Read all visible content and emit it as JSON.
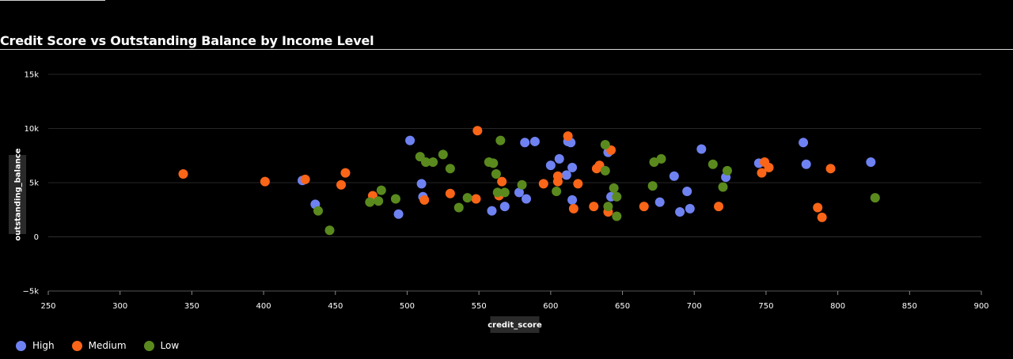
{
  "chart_data": {
    "type": "scatter",
    "title": "Credit Score vs Outstanding Balance by Income Level",
    "xlabel": "credit_score",
    "ylabel": "outstanding_balance",
    "xlim": [
      250,
      900
    ],
    "ylim": [
      -5000,
      15000
    ],
    "x_ticks": [
      250,
      300,
      350,
      400,
      450,
      500,
      550,
      600,
      650,
      700,
      750,
      800,
      850,
      900
    ],
    "y_ticks": [
      -5000,
      0,
      5000,
      10000,
      15000
    ],
    "y_tick_labels": [
      "−5k",
      "0",
      "5k",
      "10k",
      "15k"
    ],
    "grid": true,
    "legend_position": "bottom-left",
    "series": [
      {
        "name": "High",
        "color": "#6f82f2",
        "points": [
          [
            427,
            5200
          ],
          [
            436,
            3000
          ],
          [
            494,
            2100
          ],
          [
            502,
            8900
          ],
          [
            510,
            4900
          ],
          [
            511,
            3700
          ],
          [
            559,
            2400
          ],
          [
            568,
            2800
          ],
          [
            578,
            4100
          ],
          [
            583,
            3500
          ],
          [
            582,
            8700
          ],
          [
            589,
            8800
          ],
          [
            600,
            6600
          ],
          [
            606,
            7200
          ],
          [
            611,
            5700
          ],
          [
            612,
            8800
          ],
          [
            614,
            8700
          ],
          [
            615,
            6400
          ],
          [
            615,
            3400
          ],
          [
            640,
            7800
          ],
          [
            642,
            3700
          ],
          [
            676,
            3200
          ],
          [
            686,
            5600
          ],
          [
            690,
            2300
          ],
          [
            695,
            4200
          ],
          [
            697,
            2600
          ],
          [
            705,
            8100
          ],
          [
            722,
            5500
          ],
          [
            745,
            6800
          ],
          [
            776,
            8700
          ],
          [
            778,
            6700
          ],
          [
            823,
            6900
          ]
        ]
      },
      {
        "name": "Medium",
        "color": "#fa6518",
        "points": [
          [
            344,
            5800
          ],
          [
            401,
            5100
          ],
          [
            429,
            5300
          ],
          [
            454,
            4800
          ],
          [
            457,
            5900
          ],
          [
            476,
            3800
          ],
          [
            512,
            3400
          ],
          [
            530,
            4000
          ],
          [
            548,
            3500
          ],
          [
            549,
            9800
          ],
          [
            564,
            3800
          ],
          [
            566,
            5100
          ],
          [
            595,
            4900
          ],
          [
            605,
            5600
          ],
          [
            605,
            5100
          ],
          [
            612,
            9300
          ],
          [
            616,
            2600
          ],
          [
            619,
            4900
          ],
          [
            630,
            2800
          ],
          [
            632,
            6300
          ],
          [
            634,
            6600
          ],
          [
            640,
            2300
          ],
          [
            642,
            8000
          ],
          [
            665,
            2800
          ],
          [
            717,
            2800
          ],
          [
            747,
            5900
          ],
          [
            749,
            6900
          ],
          [
            752,
            6400
          ],
          [
            786,
            2700
          ],
          [
            789,
            1800
          ],
          [
            795,
            6300
          ]
        ]
      },
      {
        "name": "Low",
        "color": "#5a8a1e",
        "points": [
          [
            438,
            2400
          ],
          [
            446,
            600
          ],
          [
            474,
            3200
          ],
          [
            480,
            3300
          ],
          [
            482,
            4300
          ],
          [
            492,
            3500
          ],
          [
            509,
            7400
          ],
          [
            513,
            6900
          ],
          [
            518,
            6900
          ],
          [
            525,
            7600
          ],
          [
            530,
            6300
          ],
          [
            536,
            2700
          ],
          [
            542,
            3600
          ],
          [
            557,
            6900
          ],
          [
            560,
            6800
          ],
          [
            562,
            5800
          ],
          [
            563,
            4100
          ],
          [
            565,
            8900
          ],
          [
            568,
            4100
          ],
          [
            580,
            4800
          ],
          [
            604,
            4200
          ],
          [
            638,
            8500
          ],
          [
            638,
            6100
          ],
          [
            640,
            2800
          ],
          [
            644,
            4500
          ],
          [
            646,
            1900
          ],
          [
            646,
            3700
          ],
          [
            671,
            4700
          ],
          [
            672,
            6900
          ],
          [
            677,
            7200
          ],
          [
            713,
            6700
          ],
          [
            720,
            4600
          ],
          [
            723,
            6100
          ],
          [
            826,
            3600
          ]
        ]
      }
    ]
  }
}
